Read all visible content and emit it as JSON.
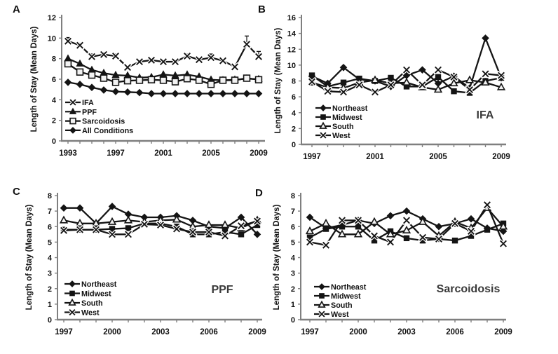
{
  "figure": {
    "ylabel": "Length of Stay (Mean Days)"
  },
  "chart_data": [
    {
      "id": "A",
      "panel_letter": "A",
      "type": "line",
      "annotation": "",
      "ylabel": "Length of Stay (Mean Days)",
      "ylim": [
        0,
        12
      ],
      "ytick_step": 2,
      "x": [
        1993,
        1994,
        1995,
        1996,
        1997,
        1998,
        1999,
        2000,
        2001,
        2002,
        2003,
        2004,
        2005,
        2006,
        2007,
        2008,
        2009
      ],
      "xticks": [
        1993,
        1997,
        2001,
        2005,
        2009
      ],
      "legend_position": "inside-bottom-left",
      "grid": false,
      "series": [
        {
          "name": "IFA",
          "marker": "x",
          "fill": "open",
          "values": [
            9.7,
            9.3,
            8.2,
            8.4,
            8.25,
            7.15,
            7.7,
            7.85,
            7.7,
            7.7,
            8.25,
            7.9,
            8.1,
            7.8,
            7.2,
            9.4,
            8.2
          ],
          "err": [
            0.35,
            0.2,
            0.25,
            0.2,
            0.2,
            0,
            0.15,
            0.1,
            0.1,
            0.1,
            0.2,
            0.15,
            0.35,
            0.15,
            0.15,
            0.8,
            0.5
          ]
        },
        {
          "name": "PPF",
          "marker": "triangle",
          "fill": "filled",
          "values": [
            8.0,
            7.5,
            6.9,
            6.6,
            6.4,
            6.35,
            6.15,
            6.2,
            6.45,
            6.35,
            6.45,
            6.25,
            5.95,
            5.9,
            5.95,
            6.05,
            6.0
          ]
        },
        {
          "name": "Sarcoidosis",
          "marker": "square",
          "fill": "open",
          "values": [
            7.5,
            6.7,
            6.4,
            6.1,
            5.7,
            5.85,
            5.9,
            5.95,
            5.9,
            5.75,
            6.05,
            5.9,
            5.5,
            5.9,
            5.9,
            6.1,
            5.95
          ],
          "err": [
            0.3,
            0,
            0,
            0,
            0,
            0,
            0,
            0,
            0,
            0,
            0,
            0,
            0,
            0,
            0,
            0,
            0
          ]
        },
        {
          "name": "All Conditions",
          "marker": "diamond",
          "fill": "filled",
          "values": [
            5.7,
            5.5,
            5.2,
            4.95,
            4.8,
            4.75,
            4.7,
            4.6,
            4.6,
            4.6,
            4.6,
            4.6,
            4.6,
            4.6,
            4.6,
            4.6,
            4.6
          ]
        }
      ]
    },
    {
      "id": "B",
      "panel_letter": "B",
      "type": "line",
      "annotation": "IFA",
      "ylabel": "Length of Stay (Mean Days)",
      "ylim": [
        0,
        16
      ],
      "ytick_step": 2,
      "x": [
        1997,
        1998,
        1999,
        2000,
        2001,
        2002,
        2003,
        2004,
        2005,
        2006,
        2007,
        2008,
        2009
      ],
      "xticks": [
        1997,
        2001,
        2005,
        2009
      ],
      "legend_position": "inside-bottom-left",
      "grid": false,
      "series": [
        {
          "name": "Northeast",
          "marker": "diamond",
          "fill": "filled",
          "values": [
            8.6,
            7.7,
            9.7,
            8.2,
            8.0,
            7.3,
            8.7,
            9.4,
            7.7,
            8.6,
            7.1,
            13.4,
            8.4
          ]
        },
        {
          "name": "Midwest",
          "marker": "square",
          "fill": "filled",
          "values": [
            8.7,
            7.3,
            7.8,
            8.3,
            8.0,
            8.4,
            7.3,
            7.3,
            8.5,
            6.7,
            6.5,
            8.0,
            8.4
          ]
        },
        {
          "name": "South",
          "marker": "triangle",
          "fill": "open",
          "values": [
            7.8,
            7.2,
            7.1,
            7.8,
            8.1,
            7.7,
            7.8,
            7.2,
            6.9,
            7.7,
            8.1,
            7.8,
            7.2
          ]
        },
        {
          "name": "West",
          "marker": "x",
          "fill": "open",
          "values": [
            7.9,
            6.7,
            6.6,
            7.5,
            6.6,
            7.5,
            9.4,
            7.5,
            9.4,
            8.5,
            6.9,
            8.9,
            8.7
          ]
        }
      ]
    },
    {
      "id": "C",
      "panel_letter": "C",
      "type": "line",
      "annotation": "PPF",
      "ylabel": "Length of Stay (Mean Days)",
      "ylim": [
        0,
        8
      ],
      "ytick_step": 1,
      "x": [
        1997,
        1998,
        1999,
        2000,
        2001,
        2002,
        2003,
        2004,
        2005,
        2006,
        2007,
        2008,
        2009
      ],
      "xticks": [
        1997,
        2000,
        2003,
        2006,
        2009
      ],
      "legend_position": "inside-bottom-left",
      "grid": false,
      "series": [
        {
          "name": "Northeast",
          "marker": "diamond",
          "fill": "filled",
          "values": [
            7.2,
            7.2,
            6.2,
            7.3,
            6.8,
            6.6,
            6.6,
            6.7,
            6.4,
            6.0,
            5.9,
            6.6,
            5.5
          ]
        },
        {
          "name": "Midwest",
          "marker": "square",
          "fill": "filled",
          "values": [
            5.8,
            5.8,
            5.8,
            5.85,
            5.9,
            6.2,
            6.2,
            6.0,
            5.5,
            5.5,
            5.65,
            5.5,
            6.1
          ]
        },
        {
          "name": "South",
          "marker": "triangle",
          "fill": "open",
          "values": [
            6.4,
            6.2,
            6.2,
            6.3,
            6.4,
            6.3,
            6.4,
            6.45,
            6.0,
            6.1,
            6.1,
            5.9,
            6.4
          ]
        },
        {
          "name": "West",
          "marker": "x",
          "fill": "open",
          "values": [
            5.75,
            5.8,
            5.8,
            5.5,
            5.5,
            6.15,
            6.1,
            5.85,
            5.65,
            5.65,
            5.4,
            6.05,
            6.35
          ]
        }
      ]
    },
    {
      "id": "D",
      "panel_letter": "D",
      "type": "line",
      "annotation": "Sarcoidosis",
      "ylabel": "Length of Stay (Mean Days)",
      "ylim": [
        0,
        8
      ],
      "ytick_step": 1,
      "x": [
        1997,
        1998,
        1999,
        2000,
        2001,
        2002,
        2003,
        2004,
        2005,
        2006,
        2007,
        2008,
        2009
      ],
      "xticks": [
        1997,
        2000,
        2003,
        2006,
        2009
      ],
      "legend_position": "inside-bottom-left",
      "grid": false,
      "series": [
        {
          "name": "Northeast",
          "marker": "diamond",
          "fill": "filled",
          "values": [
            6.6,
            5.9,
            6.1,
            6.4,
            6.2,
            6.7,
            7.0,
            6.5,
            6.0,
            6.2,
            6.5,
            5.9,
            5.7
          ]
        },
        {
          "name": "Midwest",
          "marker": "square",
          "fill": "filled",
          "values": [
            5.3,
            5.85,
            6.0,
            6.0,
            5.1,
            5.7,
            5.25,
            5.1,
            5.2,
            5.1,
            5.4,
            5.8,
            6.2
          ]
        },
        {
          "name": "South",
          "marker": "triangle",
          "fill": "open",
          "values": [
            5.7,
            6.2,
            5.5,
            5.5,
            6.3,
            5.5,
            5.75,
            6.3,
            5.4,
            6.3,
            5.9,
            7.2,
            6.0
          ]
        },
        {
          "name": "West",
          "marker": "x",
          "fill": "open",
          "values": [
            5.0,
            4.8,
            6.4,
            6.4,
            5.4,
            5.0,
            6.4,
            5.3,
            5.2,
            6.2,
            5.7,
            7.4,
            4.9
          ]
        }
      ]
    }
  ]
}
